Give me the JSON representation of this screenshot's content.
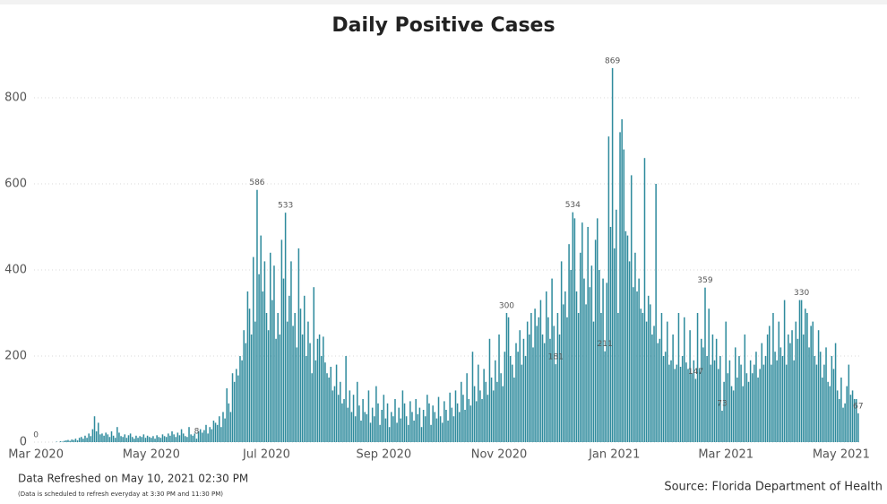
{
  "chart_data": {
    "type": "bar",
    "title": "Daily Positive Cases",
    "color": "#2f8b9d",
    "grid": true,
    "ylim": [
      0,
      900
    ],
    "yticks": [
      0,
      200,
      400,
      600,
      800
    ],
    "xlim": [
      -1,
      436
    ],
    "xticks": [
      {
        "value": 0,
        "label": "Mar 2020"
      },
      {
        "value": 61,
        "label": "May 2020"
      },
      {
        "value": 122,
        "label": "Jul 2020"
      },
      {
        "value": 184,
        "label": "Sep 2020"
      },
      {
        "value": 245,
        "label": "Nov 2020"
      },
      {
        "value": 306,
        "label": "Jan 2021"
      },
      {
        "value": 365,
        "label": "Mar 2021"
      },
      {
        "value": 426,
        "label": "May 2021"
      }
    ],
    "labeled_points": [
      0,
      85,
      117,
      132,
      249,
      275,
      284,
      301,
      305,
      349,
      354,
      363,
      405,
      435
    ],
    "values": [
      0,
      0,
      0,
      0,
      0,
      0,
      0,
      0,
      0,
      0,
      0,
      1,
      0,
      2,
      1,
      3,
      4,
      5,
      3,
      6,
      5,
      8,
      4,
      10,
      12,
      8,
      15,
      10,
      20,
      14,
      30,
      60,
      25,
      45,
      18,
      20,
      15,
      22,
      18,
      12,
      25,
      15,
      10,
      35,
      22,
      14,
      12,
      18,
      10,
      16,
      20,
      12,
      8,
      15,
      10,
      14,
      12,
      18,
      10,
      15,
      12,
      10,
      14,
      8,
      16,
      12,
      10,
      18,
      14,
      12,
      20,
      15,
      25,
      18,
      12,
      22,
      16,
      30,
      20,
      14,
      12,
      35,
      18,
      15,
      20,
      8,
      25,
      30,
      22,
      28,
      40,
      20,
      35,
      30,
      50,
      45,
      40,
      60,
      35,
      70,
      55,
      125,
      90,
      70,
      160,
      140,
      170,
      155,
      200,
      190,
      260,
      230,
      350,
      310,
      250,
      430,
      280,
      586,
      390,
      480,
      350,
      420,
      300,
      260,
      440,
      330,
      410,
      240,
      300,
      250,
      470,
      380,
      533,
      280,
      340,
      420,
      270,
      300,
      220,
      450,
      310,
      250,
      340,
      200,
      280,
      230,
      160,
      360,
      190,
      240,
      250,
      200,
      245,
      185,
      160,
      150,
      175,
      120,
      130,
      180,
      110,
      140,
      90,
      100,
      200,
      80,
      120,
      70,
      110,
      60,
      140,
      85,
      50,
      100,
      70,
      65,
      120,
      45,
      80,
      60,
      130,
      90,
      40,
      75,
      110,
      55,
      90,
      35,
      70,
      60,
      100,
      45,
      80,
      55,
      120,
      90,
      60,
      40,
      95,
      70,
      50,
      100,
      65,
      80,
      35,
      75,
      60,
      110,
      90,
      40,
      85,
      70,
      55,
      105,
      60,
      45,
      95,
      75,
      50,
      115,
      80,
      60,
      120,
      90,
      70,
      140,
      110,
      75,
      160,
      100,
      85,
      210,
      130,
      95,
      180,
      120,
      100,
      170,
      140,
      110,
      240,
      150,
      120,
      190,
      140,
      250,
      160,
      130,
      210,
      300,
      290,
      200,
      180,
      150,
      230,
      210,
      260,
      180,
      240,
      200,
      280,
      250,
      300,
      220,
      310,
      270,
      290,
      330,
      250,
      230,
      350,
      290,
      240,
      380,
      270,
      181,
      300,
      250,
      420,
      320,
      350,
      290,
      460,
      400,
      534,
      520,
      350,
      300,
      440,
      510,
      380,
      320,
      500,
      360,
      410,
      280,
      470,
      520,
      400,
      300,
      380,
      211,
      370,
      710,
      500,
      869,
      450,
      540,
      300,
      720,
      750,
      680,
      490,
      480,
      420,
      620,
      360,
      440,
      350,
      380,
      310,
      300,
      660,
      280,
      340,
      320,
      250,
      270,
      600,
      230,
      240,
      300,
      200,
      210,
      280,
      180,
      190,
      250,
      170,
      180,
      300,
      175,
      200,
      290,
      185,
      170,
      260,
      160,
      190,
      147,
      300,
      170,
      240,
      220,
      359,
      200,
      310,
      180,
      250,
      190,
      240,
      170,
      200,
      73,
      140,
      280,
      160,
      190,
      130,
      120,
      220,
      150,
      200,
      180,
      130,
      250,
      160,
      140,
      190,
      160,
      180,
      210,
      150,
      170,
      230,
      180,
      200,
      250,
      270,
      180,
      300,
      210,
      190,
      280,
      220,
      200,
      330,
      180,
      250,
      230,
      260,
      190,
      280,
      240,
      330,
      330,
      250,
      310,
      300,
      220,
      270,
      280,
      200,
      180,
      260,
      210,
      150,
      180,
      220,
      140,
      130,
      200,
      170,
      230,
      120,
      100,
      150,
      80,
      90,
      130,
      180,
      110,
      120,
      100,
      100,
      67
    ],
    "footnote": "Data Refreshed on May 10, 2021 02:30 PM",
    "note": "(Data is scheduled to refresh everyday at 3:30 PM and 11:30 PM)",
    "source": "Source: Florida Department of Health"
  }
}
